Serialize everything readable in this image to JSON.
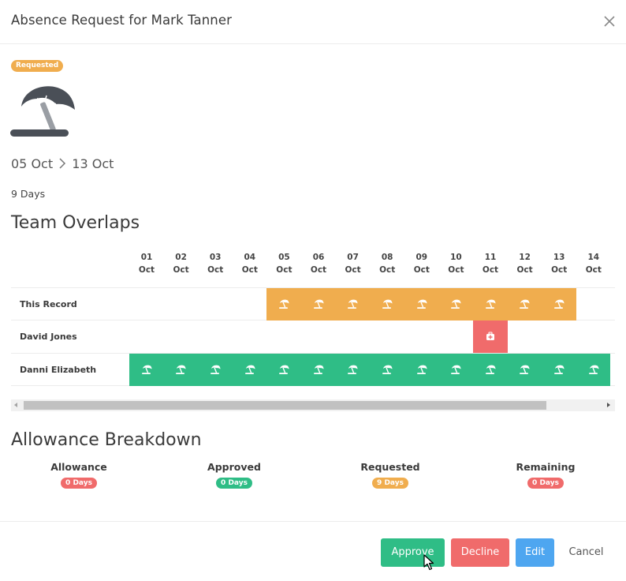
{
  "modal": {
    "title": "Absence Request for Mark Tanner",
    "status_badge": "Requested",
    "absence_icon": "beach-umbrella-icon",
    "date_start": "05 Oct",
    "date_end": "13 Oct",
    "duration": "9 Days"
  },
  "team_overlaps": {
    "title": "Team Overlaps",
    "dates": [
      {
        "day": "01",
        "month": "Oct"
      },
      {
        "day": "02",
        "month": "Oct"
      },
      {
        "day": "03",
        "month": "Oct"
      },
      {
        "day": "04",
        "month": "Oct"
      },
      {
        "day": "05",
        "month": "Oct"
      },
      {
        "day": "06",
        "month": "Oct"
      },
      {
        "day": "07",
        "month": "Oct"
      },
      {
        "day": "08",
        "month": "Oct"
      },
      {
        "day": "09",
        "month": "Oct"
      },
      {
        "day": "10",
        "month": "Oct"
      },
      {
        "day": "11",
        "month": "Oct"
      },
      {
        "day": "12",
        "month": "Oct"
      },
      {
        "day": "13",
        "month": "Oct"
      },
      {
        "day": "14",
        "month": "Oct"
      }
    ],
    "rows": [
      {
        "name": "This Record",
        "from": "05 Oct",
        "to": "13 Oct",
        "type": "holiday",
        "color": "#f0ad4e",
        "icon": "beach-umbrella-icon"
      },
      {
        "name": "David Jones",
        "from": "11 Oct",
        "to": "11 Oct",
        "type": "sickness",
        "color": "#f06b6b",
        "icon": "medical-bag-icon"
      },
      {
        "name": "Danni Elizabeth",
        "from": "01 Oct",
        "to": "14 Oct",
        "type": "holiday",
        "color": "#2fbd86",
        "icon": "beach-umbrella-icon"
      }
    ]
  },
  "allowance": {
    "title": "Allowance Breakdown",
    "stats": [
      {
        "label": "Allowance",
        "value": "0 Days",
        "color": "#f06b6b"
      },
      {
        "label": "Approved",
        "value": "0 Days",
        "color": "#2fbd86"
      },
      {
        "label": "Requested",
        "value": "9 Days",
        "color": "#f0ad4e"
      },
      {
        "label": "Remaining",
        "value": "0 Days",
        "color": "#f06b6b"
      }
    ]
  },
  "footer": {
    "approve_label": "Approve",
    "decline_label": "Decline",
    "edit_label": "Edit",
    "cancel_label": "Cancel"
  },
  "colors": {
    "requested": "#f0ad4e",
    "approve": "#2fbd86",
    "decline": "#f06b6b",
    "edit": "#4ea6f0"
  }
}
